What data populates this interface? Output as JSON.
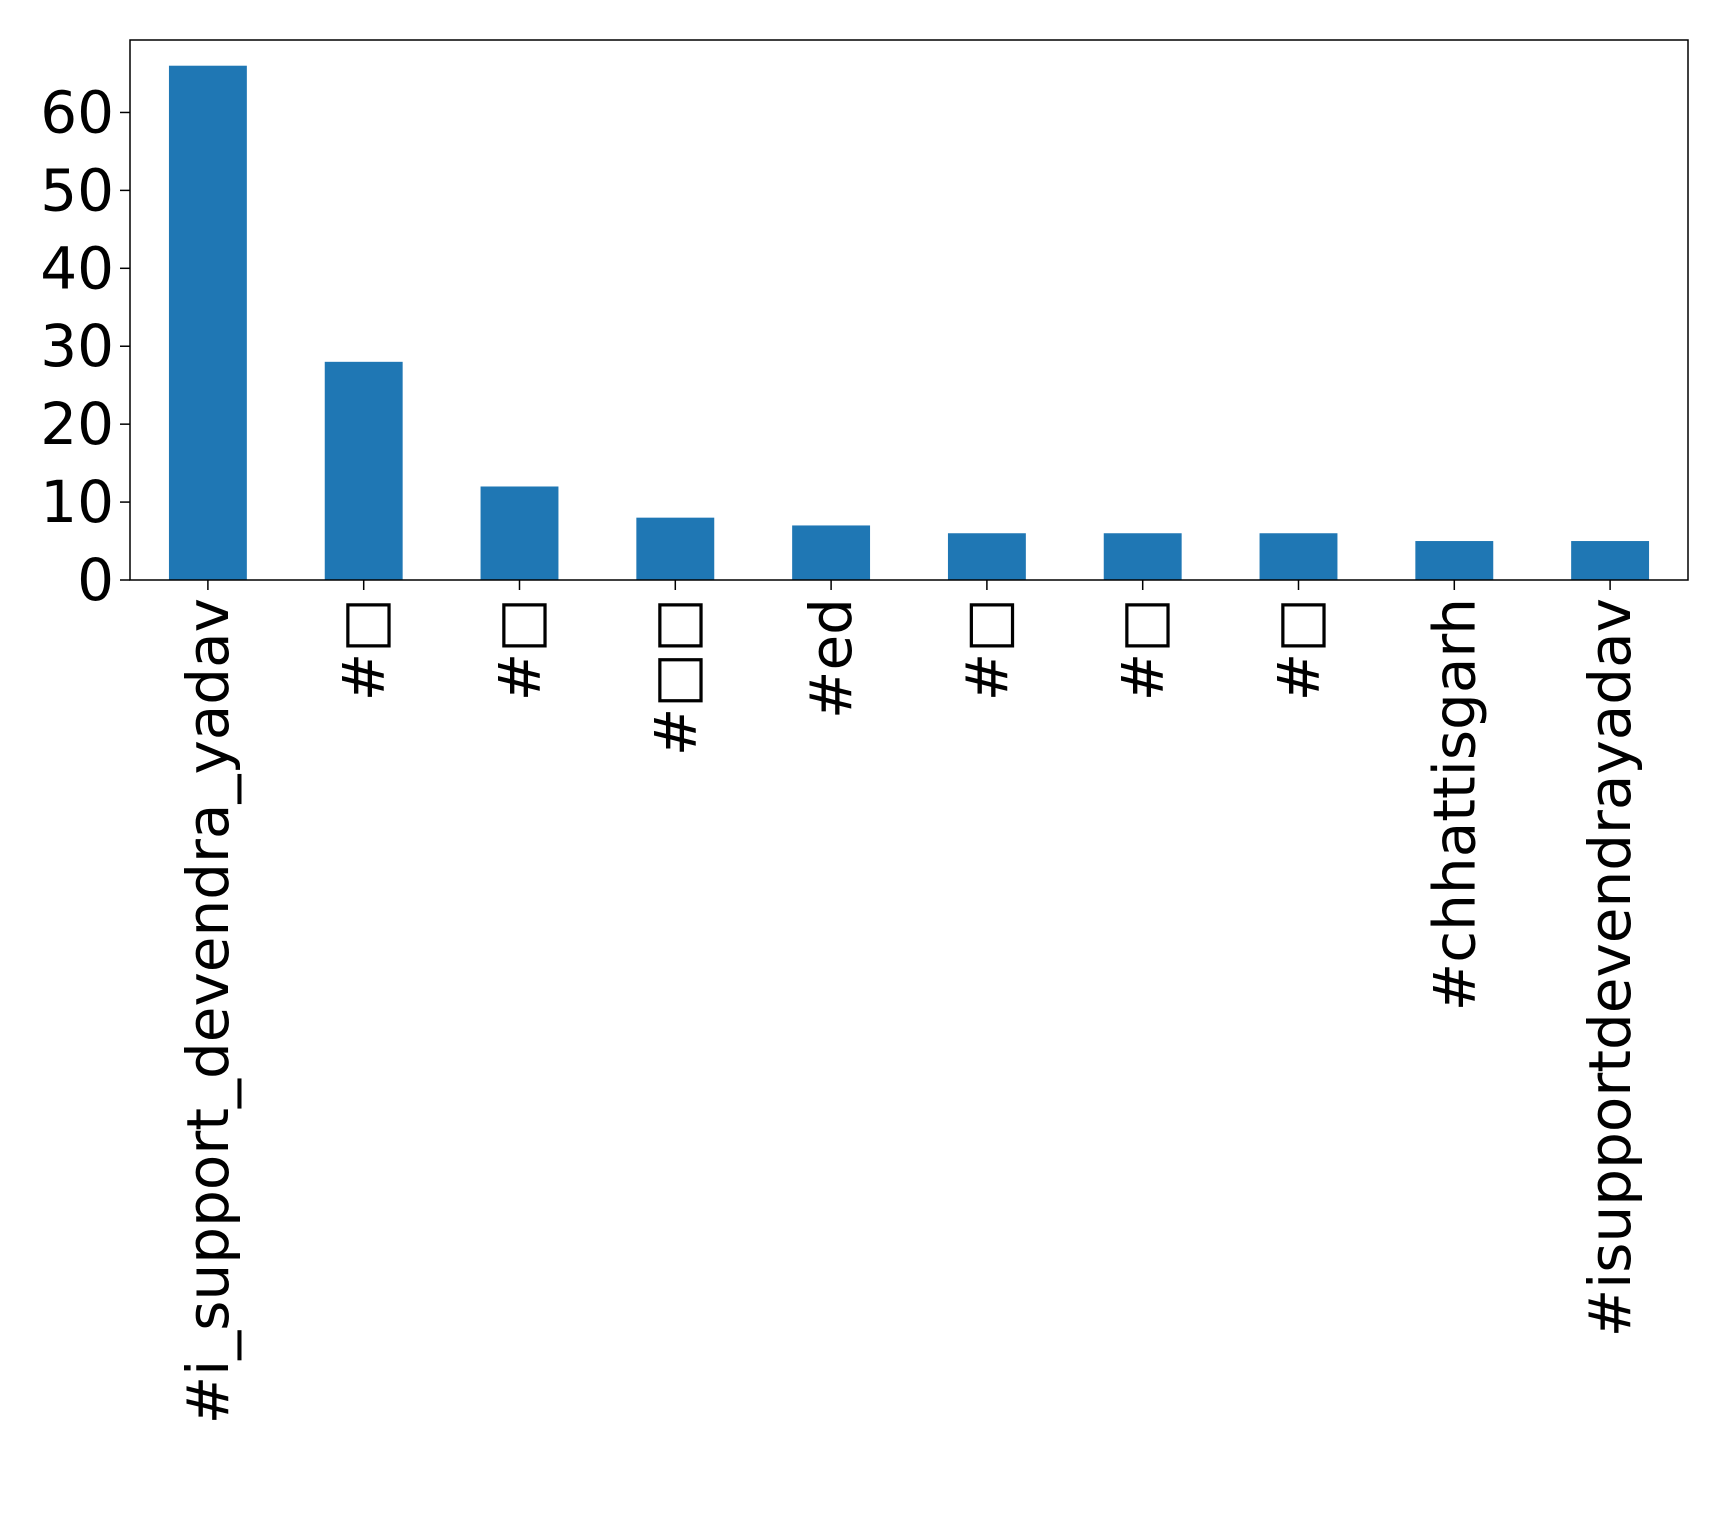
{
  "chart_data": {
    "type": "bar",
    "title": "",
    "xlabel": "",
    "ylabel": "",
    "categories": [
      "#i_support_devendra_yadav",
      "#□",
      "#□",
      "#□□",
      "#ed",
      "#□",
      "#□",
      "#□",
      "#chhattisgarh",
      "#isupportdevendrayadav"
    ],
    "values": [
      66,
      28,
      12,
      8,
      7,
      6,
      6,
      6,
      5,
      5
    ],
    "ylim": [
      0,
      69.3
    ],
    "yticks": [
      0,
      10,
      20,
      30,
      40,
      50,
      60
    ],
    "bar_color": "#1f77b4",
    "grid": false,
    "legend": "none"
  }
}
